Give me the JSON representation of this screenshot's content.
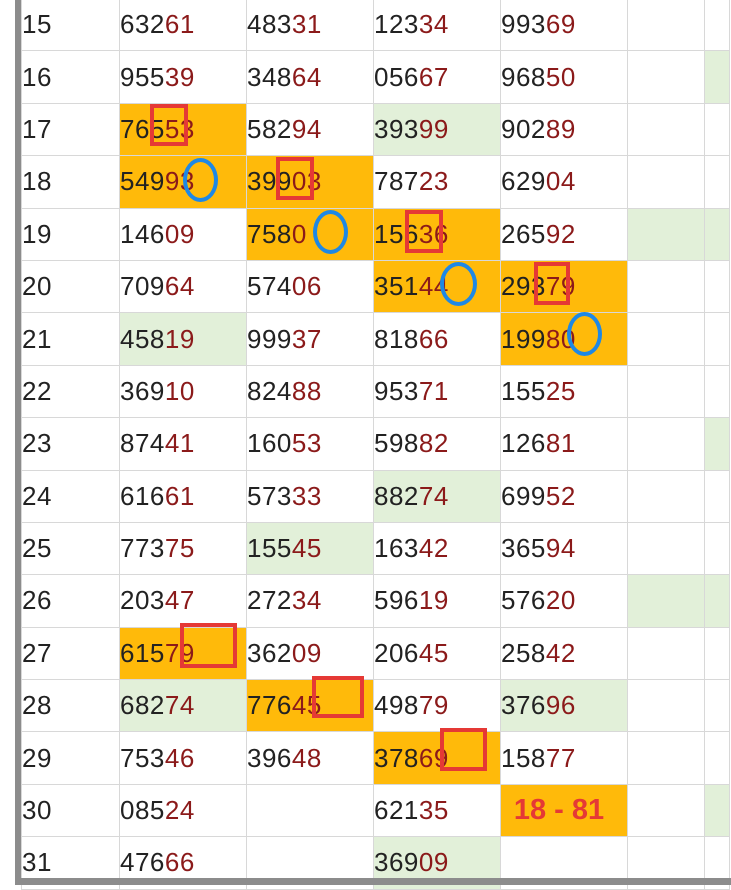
{
  "rows": [
    {
      "day": "15",
      "v": [
        [
          "632",
          "61"
        ],
        [
          "483",
          "31"
        ],
        [
          "123",
          "34"
        ],
        [
          "993",
          "69"
        ]
      ]
    },
    {
      "day": "16",
      "v": [
        [
          "955",
          "39"
        ],
        [
          "348",
          "64"
        ],
        [
          "056",
          "67"
        ],
        [
          "968",
          "50"
        ]
      ]
    },
    {
      "day": "17",
      "v": [
        [
          "765",
          "53"
        ],
        [
          "582",
          "94"
        ],
        [
          "393",
          "99"
        ],
        [
          "902",
          "89"
        ]
      ]
    },
    {
      "day": "18",
      "v": [
        [
          "549",
          "93"
        ],
        [
          "399",
          "03"
        ],
        [
          "787",
          "23"
        ],
        [
          "629",
          "04"
        ]
      ]
    },
    {
      "day": "19",
      "v": [
        [
          "146",
          "09"
        ],
        [
          "758",
          "0"
        ],
        [
          "156",
          "36"
        ],
        [
          "265",
          "92"
        ]
      ]
    },
    {
      "day": "20",
      "v": [
        [
          "709",
          "64"
        ],
        [
          "574",
          "06"
        ],
        [
          "351",
          "44"
        ],
        [
          "293",
          "79"
        ]
      ]
    },
    {
      "day": "21",
      "v": [
        [
          "458",
          "19"
        ],
        [
          "999",
          "37"
        ],
        [
          "818",
          "66"
        ],
        [
          "199",
          "80"
        ]
      ]
    },
    {
      "day": "22",
      "v": [
        [
          "369",
          "10"
        ],
        [
          "824",
          "88"
        ],
        [
          "953",
          "71"
        ],
        [
          "155",
          "25"
        ]
      ]
    },
    {
      "day": "23",
      "v": [
        [
          "874",
          "41"
        ],
        [
          "160",
          "53"
        ],
        [
          "598",
          "82"
        ],
        [
          "126",
          "81"
        ]
      ]
    },
    {
      "day": "24",
      "v": [
        [
          "616",
          "61"
        ],
        [
          "573",
          "33"
        ],
        [
          "882",
          "74"
        ],
        [
          "699",
          "52"
        ]
      ]
    },
    {
      "day": "25",
      "v": [
        [
          "773",
          "75"
        ],
        [
          "155",
          "45"
        ],
        [
          "163",
          "42"
        ],
        [
          "365",
          "94"
        ]
      ]
    },
    {
      "day": "26",
      "v": [
        [
          "203",
          "47"
        ],
        [
          "272",
          "34"
        ],
        [
          "596",
          "19"
        ],
        [
          "576",
          "20"
        ]
      ]
    },
    {
      "day": "27",
      "v": [
        [
          "615",
          "79"
        ],
        [
          "362",
          "09"
        ],
        [
          "206",
          "45"
        ],
        [
          "258",
          "42"
        ]
      ]
    },
    {
      "day": "28",
      "v": [
        [
          "682",
          "74"
        ],
        [
          "776",
          "45"
        ],
        [
          "498",
          "79"
        ],
        [
          "376",
          "96"
        ]
      ]
    },
    {
      "day": "29",
      "v": [
        [
          "753",
          "46"
        ],
        [
          "396",
          "48"
        ],
        [
          "378",
          "69"
        ],
        [
          "158",
          "77"
        ]
      ]
    },
    {
      "day": "30",
      "v": [
        [
          "085",
          "24"
        ],
        [
          "",
          ""
        ],
        [
          "621",
          "35"
        ],
        [
          "",
          ""
        ]
      ]
    },
    {
      "day": "31",
      "v": [
        [
          "476",
          "66"
        ],
        [
          "",
          ""
        ],
        [
          "369",
          "09"
        ],
        [
          "",
          ""
        ]
      ]
    }
  ],
  "result_label": "18 - 81",
  "colors": {
    "gold": "#ffba0a",
    "green": "#e2f0d9",
    "red_box": "#e53935",
    "blue_ring": "#1e88e5",
    "digit_hi": "#8b1a1a",
    "day_text": "#1f3a93"
  }
}
